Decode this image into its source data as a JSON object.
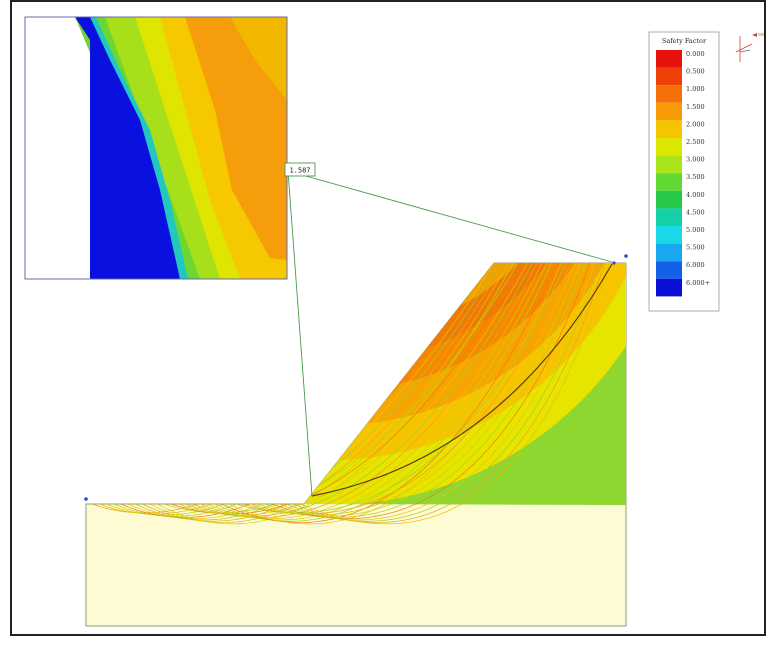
{
  "legend": {
    "title": "Safety Factor",
    "items": [
      {
        "label": "0.000",
        "color": "#e8120c"
      },
      {
        "label": "0.500",
        "color": "#f0400a"
      },
      {
        "label": "1.000",
        "color": "#f57008"
      },
      {
        "label": "1.500",
        "color": "#f79a06"
      },
      {
        "label": "2.000",
        "color": "#f4c600"
      },
      {
        "label": "2.500",
        "color": "#dde600"
      },
      {
        "label": "3.000",
        "color": "#a8e41a"
      },
      {
        "label": "3.500",
        "color": "#62d832"
      },
      {
        "label": "4.000",
        "color": "#28c84a"
      },
      {
        "label": "4.500",
        "color": "#16d0a8"
      },
      {
        "label": "5.000",
        "color": "#1ad8e8"
      },
      {
        "label": "5.500",
        "color": "#18a8f0"
      },
      {
        "label": "6.000",
        "color": "#1460e8"
      },
      {
        "label": "6.000+",
        "color": "#0a10d8"
      }
    ]
  },
  "min_fs": {
    "label": "1.587"
  },
  "colors": {
    "soil": "#fdfbd3",
    "layer_green": "#b9d9b8",
    "layer_orange": "#f7c7a6",
    "frame": "#222222",
    "zoom_line": "#4a9a4a"
  }
}
